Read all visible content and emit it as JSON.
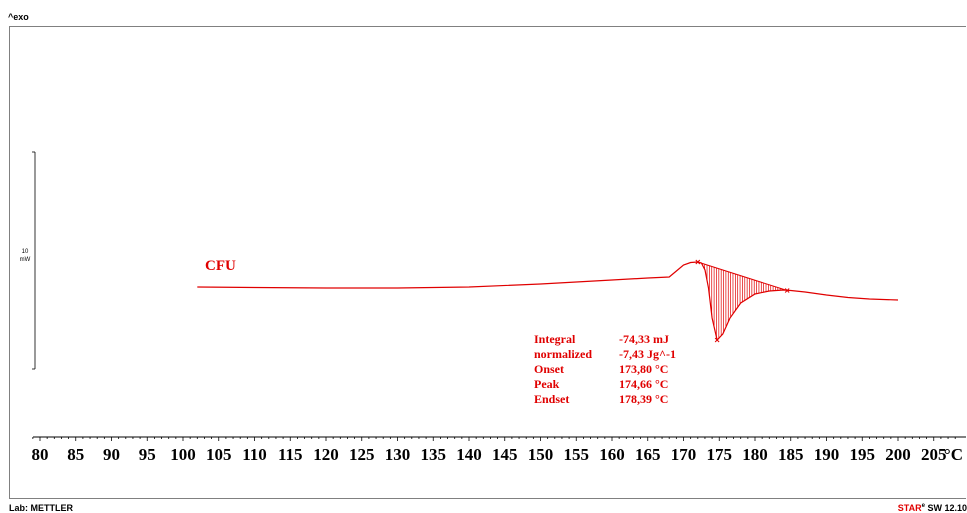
{
  "header": {
    "exo_label": "^exo"
  },
  "footer": {
    "lab": "Lab: METTLER",
    "software_brand": "STAR",
    "software_super": "e",
    "software_version": " SW 12.10"
  },
  "colors": {
    "curve": "#e00000",
    "axis": "#000000",
    "frame": "#808080"
  },
  "chart_data": {
    "type": "line",
    "title": "",
    "xlabel": "°C",
    "ylabel": "",
    "xlim": [
      80,
      205
    ],
    "x_ticks": [
      80,
      85,
      90,
      95,
      100,
      105,
      110,
      115,
      120,
      125,
      130,
      135,
      140,
      145,
      150,
      155,
      160,
      165,
      170,
      175,
      180,
      185,
      190,
      195,
      200,
      205
    ],
    "y_scale_bar": {
      "value": "10",
      "unit": "mW"
    },
    "grid": false,
    "series": [
      {
        "name": "CFU",
        "x": [
          102,
          110,
          120,
          130,
          140,
          150,
          160,
          165,
          168,
          169,
          170,
          171,
          172,
          172.5,
          173,
          173.5,
          174,
          174.7,
          175.5,
          176.5,
          178,
          180,
          182,
          184,
          185,
          187,
          190,
          193,
          196,
          200
        ],
        "y": [
          287,
          287.5,
          288,
          288,
          287,
          284,
          280,
          278,
          277,
          271,
          265,
          262.5,
          262,
          263,
          270,
          288,
          318,
          340,
          334,
          318,
          303,
          294,
          291,
          290,
          290.5,
          292,
          295,
          297.5,
          299,
          300
        ],
        "y_units": "relative (px-free display: heat flow, exo up)"
      }
    ],
    "annotations": {
      "rows": [
        {
          "label": "Integral",
          "value": "-74,33 mJ"
        },
        {
          "label": "  normalized",
          "value": "-7,43 Jg^-1"
        },
        {
          "label": "Onset",
          "value": "173,80 °C"
        },
        {
          "label": "Peak",
          "value": "174,66 °C"
        },
        {
          "label": "Endset",
          "value": "178,39 °C"
        }
      ]
    }
  }
}
